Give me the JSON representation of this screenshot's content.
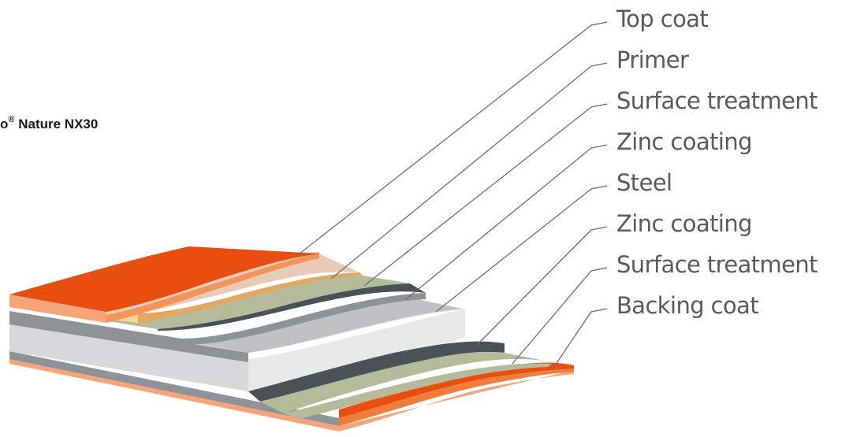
{
  "title": {
    "prefix": "o",
    "reg": "®",
    "suffix": " Nature NX30"
  },
  "layers": [
    {
      "label": "Top coat",
      "color": "#e84e0f"
    },
    {
      "label": "Primer",
      "color": "#e8cbb7"
    },
    {
      "label": "Surface treatment",
      "color": "#e0a860"
    },
    {
      "label": "Zinc coating",
      "color": "#4a5258"
    },
    {
      "label": "Steel",
      "color": "#d6d8da"
    },
    {
      "label": "Zinc coating",
      "color": "#4a5258"
    },
    {
      "label": "Surface treatment",
      "color": "#b5bb9a"
    },
    {
      "label": "Backing coat",
      "color": "#e84e0f"
    }
  ]
}
